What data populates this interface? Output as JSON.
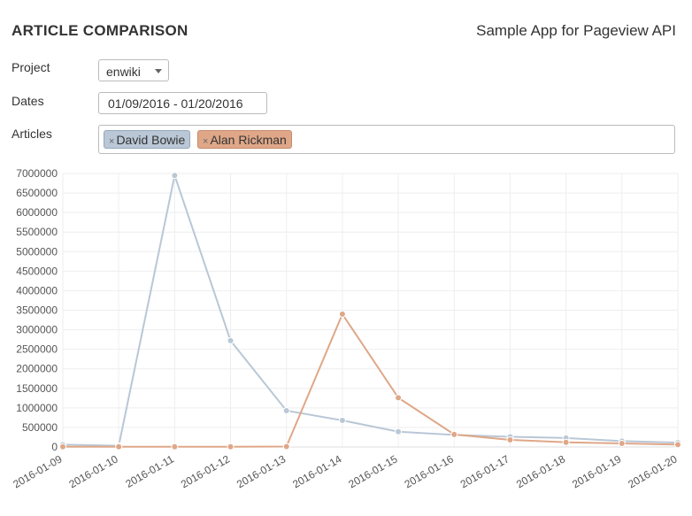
{
  "header": {
    "title": "ARTICLE COMPARISON",
    "app_name": "Sample App for Pageview API"
  },
  "form": {
    "project_label": "Project",
    "project_value": "enwiki",
    "dates_label": "Dates",
    "dates_value": "01/09/2016 - 01/20/2016",
    "articles_label": "Articles",
    "articles": [
      {
        "label": "David Bowie",
        "remove_icon": "×"
      },
      {
        "label": "Alan Rickman",
        "remove_icon": "×"
      }
    ]
  },
  "colors": {
    "series_1": "#b9c7d6",
    "series_2": "#dfa788"
  },
  "chart_data": {
    "type": "line",
    "x": [
      "2016-01-09",
      "2016-01-10",
      "2016-01-11",
      "2016-01-12",
      "2016-01-13",
      "2016-01-14",
      "2016-01-15",
      "2016-01-16",
      "2016-01-17",
      "2016-01-18",
      "2016-01-19",
      "2016-01-20"
    ],
    "series": [
      {
        "name": "David Bowie",
        "color": "#b9c7d6",
        "values": [
          60000,
          30000,
          6950000,
          2720000,
          930000,
          680000,
          390000,
          310000,
          260000,
          230000,
          150000,
          110000
        ]
      },
      {
        "name": "Alan Rickman",
        "color": "#dfa788",
        "values": [
          5000,
          5000,
          5000,
          5000,
          10000,
          3400000,
          1260000,
          320000,
          180000,
          120000,
          90000,
          60000
        ]
      }
    ],
    "yticks": [
      "0",
      "500000",
      "1000000",
      "1500000",
      "2000000",
      "2500000",
      "3000000",
      "3500000",
      "4000000",
      "4500000",
      "5000000",
      "5500000",
      "6000000",
      "6500000",
      "7000000"
    ],
    "ylim": [
      0,
      7000000
    ],
    "grid": true,
    "legend": "none"
  }
}
